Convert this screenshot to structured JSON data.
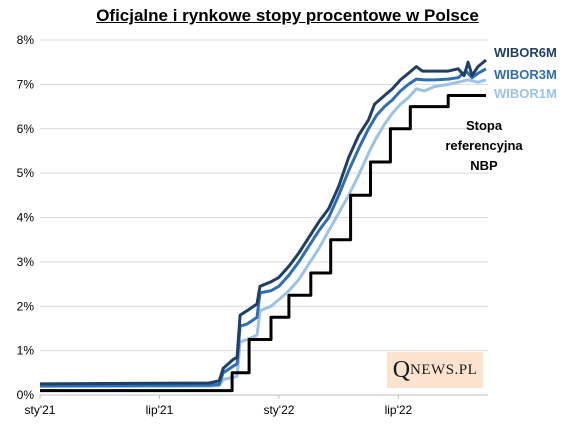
{
  "chart_data": {
    "type": "line",
    "title": "Oficjalne i rynkowe stopy procentowe w Polsce",
    "xlabel": "",
    "ylabel": "",
    "x_ticks": [
      "sty'21",
      "lip'21",
      "sty'22",
      "lip'22"
    ],
    "y_ticks": [
      "0%",
      "1%",
      "2%",
      "3%",
      "4%",
      "5%",
      "6%",
      "7%",
      "8%"
    ],
    "ylim": [
      0,
      8
    ],
    "x_unit": "months since sty'21",
    "xlim": [
      0,
      22.5
    ],
    "grid": true,
    "legend": "inline labels at right end",
    "series": [
      {
        "name": "WIBOR6M",
        "color": "#1f3f66",
        "step": false,
        "points": [
          [
            0,
            0.25
          ],
          [
            8.5,
            0.27
          ],
          [
            9.0,
            0.32
          ],
          [
            9.2,
            0.6
          ],
          [
            9.7,
            0.8
          ],
          [
            9.9,
            0.85
          ],
          [
            10.05,
            1.8
          ],
          [
            10.4,
            1.9
          ],
          [
            10.9,
            2.05
          ],
          [
            11.05,
            2.45
          ],
          [
            11.6,
            2.55
          ],
          [
            12.0,
            2.65
          ],
          [
            12.5,
            2.9
          ],
          [
            13.0,
            3.2
          ],
          [
            13.5,
            3.55
          ],
          [
            14.0,
            3.9
          ],
          [
            14.5,
            4.2
          ],
          [
            15.0,
            4.7
          ],
          [
            15.5,
            5.35
          ],
          [
            16.0,
            5.85
          ],
          [
            16.5,
            6.2
          ],
          [
            16.8,
            6.55
          ],
          [
            17.3,
            6.75
          ],
          [
            17.7,
            6.9
          ],
          [
            18.1,
            7.1
          ],
          [
            18.5,
            7.25
          ],
          [
            18.9,
            7.4
          ],
          [
            19.2,
            7.3
          ],
          [
            19.8,
            7.3
          ],
          [
            20.5,
            7.3
          ],
          [
            21.0,
            7.35
          ],
          [
            21.3,
            7.2
          ],
          [
            21.5,
            7.5
          ],
          [
            21.7,
            7.2
          ],
          [
            22.0,
            7.4
          ],
          [
            22.4,
            7.55
          ]
        ]
      },
      {
        "name": "WIBOR3M",
        "color": "#2e6fb4",
        "step": false,
        "points": [
          [
            0,
            0.21
          ],
          [
            8.5,
            0.22
          ],
          [
            9.0,
            0.24
          ],
          [
            9.2,
            0.5
          ],
          [
            9.7,
            0.65
          ],
          [
            9.9,
            0.7
          ],
          [
            10.05,
            1.55
          ],
          [
            10.4,
            1.6
          ],
          [
            10.9,
            1.75
          ],
          [
            11.05,
            2.3
          ],
          [
            11.6,
            2.35
          ],
          [
            12.0,
            2.45
          ],
          [
            12.5,
            2.7
          ],
          [
            13.0,
            3.0
          ],
          [
            13.5,
            3.35
          ],
          [
            14.0,
            3.7
          ],
          [
            14.5,
            4.0
          ],
          [
            15.0,
            4.5
          ],
          [
            15.5,
            5.05
          ],
          [
            16.0,
            5.55
          ],
          [
            16.5,
            6.0
          ],
          [
            16.9,
            6.3
          ],
          [
            17.3,
            6.5
          ],
          [
            17.7,
            6.65
          ],
          [
            18.1,
            6.85
          ],
          [
            18.5,
            7.0
          ],
          [
            18.9,
            7.12
          ],
          [
            19.3,
            7.1
          ],
          [
            19.8,
            7.1
          ],
          [
            20.5,
            7.12
          ],
          [
            21.0,
            7.15
          ],
          [
            21.4,
            7.3
          ],
          [
            21.7,
            7.15
          ],
          [
            22.0,
            7.25
          ],
          [
            22.4,
            7.35
          ]
        ]
      },
      {
        "name": "WIBOR1M",
        "color": "#9cc3e6",
        "step": false,
        "points": [
          [
            0,
            0.19
          ],
          [
            8.5,
            0.2
          ],
          [
            9.0,
            0.21
          ],
          [
            9.2,
            0.35
          ],
          [
            9.7,
            0.4
          ],
          [
            9.9,
            0.42
          ],
          [
            10.05,
            1.2
          ],
          [
            10.4,
            1.25
          ],
          [
            10.9,
            1.35
          ],
          [
            11.05,
            1.9
          ],
          [
            11.6,
            2.0
          ],
          [
            12.0,
            2.15
          ],
          [
            12.5,
            2.35
          ],
          [
            13.0,
            2.6
          ],
          [
            13.5,
            2.95
          ],
          [
            14.0,
            3.3
          ],
          [
            14.5,
            3.7
          ],
          [
            15.0,
            4.1
          ],
          [
            15.5,
            4.5
          ],
          [
            16.0,
            4.95
          ],
          [
            16.5,
            5.45
          ],
          [
            16.9,
            5.8
          ],
          [
            17.3,
            6.1
          ],
          [
            17.7,
            6.35
          ],
          [
            18.1,
            6.55
          ],
          [
            18.5,
            6.7
          ],
          [
            18.9,
            6.9
          ],
          [
            19.3,
            6.85
          ],
          [
            19.8,
            6.95
          ],
          [
            20.5,
            7.0
          ],
          [
            21.0,
            7.05
          ],
          [
            21.5,
            7.1
          ],
          [
            22.0,
            7.05
          ],
          [
            22.4,
            7.1
          ]
        ]
      },
      {
        "name": "Stopa referencyjna NBP",
        "color": "#000000",
        "step": true,
        "points": [
          [
            0,
            0.1
          ],
          [
            9.65,
            0.1
          ],
          [
            9.65,
            0.5
          ],
          [
            10.5,
            0.5
          ],
          [
            10.5,
            1.25
          ],
          [
            11.6,
            1.25
          ],
          [
            11.6,
            1.75
          ],
          [
            12.5,
            1.75
          ],
          [
            12.5,
            2.25
          ],
          [
            13.6,
            2.25
          ],
          [
            13.6,
            2.75
          ],
          [
            14.6,
            2.75
          ],
          [
            14.6,
            3.5
          ],
          [
            15.6,
            3.5
          ],
          [
            15.6,
            4.5
          ],
          [
            16.6,
            4.5
          ],
          [
            16.6,
            5.25
          ],
          [
            17.6,
            5.25
          ],
          [
            17.6,
            6.0
          ],
          [
            18.6,
            6.0
          ],
          [
            18.6,
            6.5
          ],
          [
            20.5,
            6.5
          ],
          [
            20.5,
            6.75
          ],
          [
            22.4,
            6.75
          ]
        ]
      }
    ],
    "labels": {
      "wibor6m": "WIBOR6M",
      "wibor3m": "WIBOR3M",
      "wibor1m": "WIBOR1M",
      "ref_line1": "Stopa",
      "ref_line2": "referencyjna",
      "ref_line3": "NBP"
    }
  },
  "logo": {
    "q": "Q",
    "rest": "NEWS.PL"
  }
}
